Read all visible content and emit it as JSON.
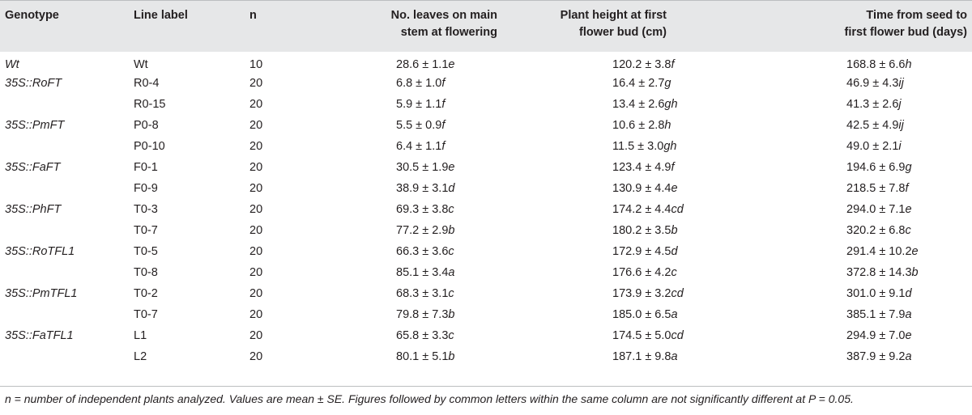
{
  "table": {
    "headers": {
      "genotype": "Genotype",
      "line_label": "Line label",
      "n": "n",
      "leaves": [
        "No. leaves on main",
        "stem at flowering"
      ],
      "height": [
        "Plant height at first",
        "flower bud (cm)"
      ],
      "time": [
        "Time from seed to",
        "first flower bud (days)"
      ]
    },
    "rows": [
      {
        "genotype": "Wt",
        "line": "Wt",
        "n": "10",
        "leaves": "28.6 ± 1.1",
        "leaves_l": "e",
        "height": "120.2 ± 3.8",
        "height_l": "f",
        "time": "168.8 ± 6.6",
        "time_l": "h"
      },
      {
        "genotype": "35S::RoFT",
        "line": "R0-4",
        "n": "20",
        "leaves": "6.8 ± 1.0",
        "leaves_l": "f",
        "height": "16.4 ± 2.7",
        "height_l": "g",
        "time": "46.9 ± 4.3",
        "time_l": "ij"
      },
      {
        "genotype": "",
        "line": "R0-15",
        "n": "20",
        "leaves": "5.9 ± 1.1",
        "leaves_l": "f",
        "height": "13.4 ± 2.6",
        "height_l": "gh",
        "time": "41.3 ± 2.6",
        "time_l": "j"
      },
      {
        "genotype": "35S::PmFT",
        "line": "P0-8",
        "n": "20",
        "leaves": "5.5 ± 0.9",
        "leaves_l": "f",
        "height": "10.6 ± 2.8",
        "height_l": "h",
        "time": "42.5 ± 4.9",
        "time_l": "ij"
      },
      {
        "genotype": "",
        "line": "P0-10",
        "n": "20",
        "leaves": "6.4 ± 1.1",
        "leaves_l": "f",
        "height": "11.5 ± 3.0",
        "height_l": "gh",
        "time": "49.0 ± 2.1",
        "time_l": "i"
      },
      {
        "genotype": "35S::FaFT",
        "line": "F0-1",
        "n": "20",
        "leaves": "30.5 ± 1.9",
        "leaves_l": "e",
        "height": "123.4 ± 4.9",
        "height_l": "f",
        "time": "194.6 ± 6.9",
        "time_l": "g"
      },
      {
        "genotype": "",
        "line": "F0-9",
        "n": "20",
        "leaves": "38.9 ± 3.1",
        "leaves_l": "d",
        "height": "130.9 ± 4.4",
        "height_l": "e",
        "time": "218.5 ± 7.8",
        "time_l": "f"
      },
      {
        "genotype": "35S::PhFT",
        "line": "T0-3",
        "n": "20",
        "leaves": "69.3 ± 3.8",
        "leaves_l": "c",
        "height": "174.2 ± 4.4",
        "height_l": "cd",
        "time": "294.0 ± 7.1",
        "time_l": "e"
      },
      {
        "genotype": "",
        "line": "T0-7",
        "n": "20",
        "leaves": "77.2 ± 2.9",
        "leaves_l": "b",
        "height": "180.2 ± 3.5",
        "height_l": "b",
        "time": "320.2 ± 6.8",
        "time_l": "c"
      },
      {
        "genotype": "35S::RoTFL1",
        "line": "T0-5",
        "n": "20",
        "leaves": "66.3 ± 3.6",
        "leaves_l": "c",
        "height": "172.9 ± 4.5",
        "height_l": "d",
        "time": "291.4 ± 10.2",
        "time_l": "e"
      },
      {
        "genotype": "",
        "line": "T0-8",
        "n": "20",
        "leaves": "85.1 ± 3.4",
        "leaves_l": "a",
        "height": "176.6 ± 4.2",
        "height_l": "c",
        "time": "372.8 ± 14.3",
        "time_l": "b"
      },
      {
        "genotype": "35S::PmTFL1",
        "line": "T0-2",
        "n": "20",
        "leaves": "68.3 ± 3.1",
        "leaves_l": "c",
        "height": "173.9 ± 3.2",
        "height_l": "cd",
        "time": "301.0 ± 9.1",
        "time_l": "d"
      },
      {
        "genotype": "",
        "line": "T0-7",
        "n": "20",
        "leaves": "79.8 ± 7.3",
        "leaves_l": "b",
        "height": "185.0 ± 6.5",
        "height_l": "a",
        "time": "385.1 ± 7.9",
        "time_l": "a"
      },
      {
        "genotype": "35S::FaTFL1",
        "line": "L1",
        "n": "20",
        "leaves": "65.8 ± 3.3",
        "leaves_l": "c",
        "height": "174.5 ± 5.0",
        "height_l": "cd",
        "time": "294.9 ± 7.0",
        "time_l": "e"
      },
      {
        "genotype": "",
        "line": "L2",
        "n": "20",
        "leaves": "80.1 ± 5.1",
        "leaves_l": "b",
        "height": "187.1 ± 9.8",
        "height_l": "a",
        "time": "387.9 ± 9.2",
        "time_l": "a"
      }
    ]
  },
  "footnote": "n = number of independent plants analyzed. Values are mean ± SE. Figures followed by common letters within the same column are not significantly different at P = 0.05.",
  "colors": {
    "header_bg": "#e6e7e8",
    "text": "#231f20",
    "rule": "#bcbec0"
  }
}
